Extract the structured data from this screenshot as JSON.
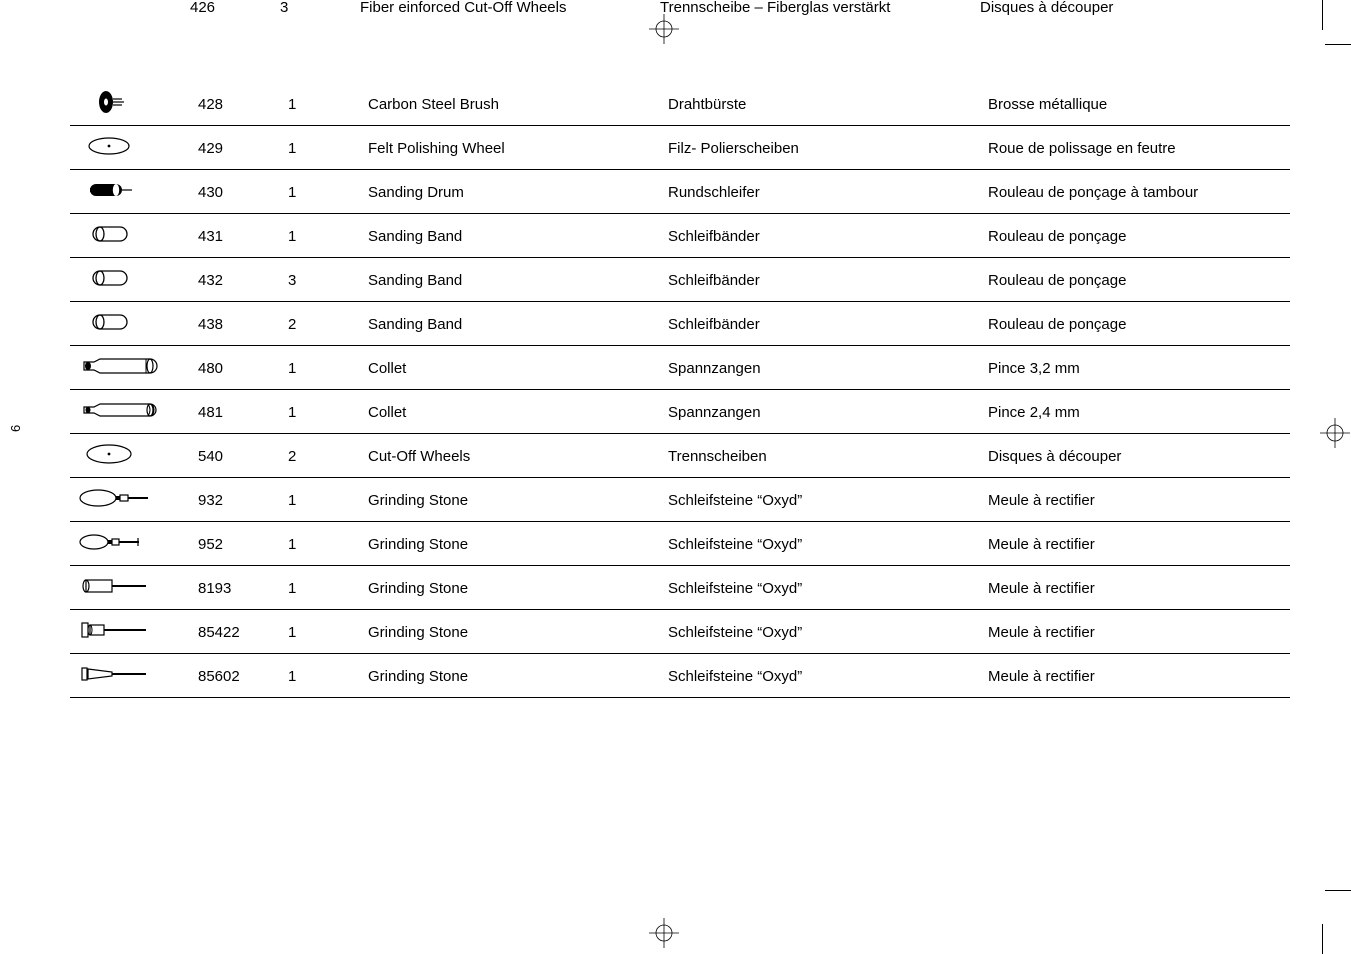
{
  "page_number": "6",
  "partial_row": {
    "num": "426",
    "qty": "3",
    "en": "Fiber  einforced Cut-Off  Wheels",
    "de": "Trennscheibe – Fiberglas verstärkt",
    "fr": "Disques à découper"
  },
  "rows": [
    {
      "icon": "brush",
      "num": "428",
      "qty": "1",
      "en": "Carbon Steel Brush",
      "de": "Drahtbürste",
      "fr": "Brosse métallique"
    },
    {
      "icon": "feltwheel",
      "num": "429",
      "qty": "1",
      "en": "Felt Polishing Wheel",
      "de": "Filz- Polierscheiben",
      "fr": "Roue de polissage en feutre"
    },
    {
      "icon": "drum",
      "num": "430",
      "qty": "1",
      "en": "Sanding Drum",
      "de": "Rundschleifer",
      "fr": "Rouleau de ponçage  à tambour"
    },
    {
      "icon": "band",
      "num": "431",
      "qty": "1",
      "en": "Sanding Band",
      "de": "Schleifbänder",
      "fr": "Rouleau de ponçage"
    },
    {
      "icon": "band",
      "num": "432",
      "qty": "3",
      "en": "Sanding Band",
      "de": "Schleifbänder",
      "fr": "Rouleau de ponçage"
    },
    {
      "icon": "band",
      "num": "438",
      "qty": "2",
      "en": "Sanding Band",
      "de": "Schleifbänder",
      "fr": "Rouleau de ponçage"
    },
    {
      "icon": "collet32",
      "num": "480",
      "qty": "1",
      "en": "Collet",
      "de": "Spannzangen",
      "fr": "Pince 3,2 mm"
    },
    {
      "icon": "collet24",
      "num": "481",
      "qty": "1",
      "en": "Collet",
      "de": "Spannzangen",
      "fr": "Pince 2,4 mm"
    },
    {
      "icon": "cutoff",
      "num": "540",
      "qty": "2",
      "en": "Cut-Off Wheels",
      "de": "Trennscheiben",
      "fr": "Disques à découper"
    },
    {
      "icon": "stoneA",
      "num": "932",
      "qty": "1",
      "en": "Grinding Stone",
      "de": "Schleifsteine “Oxyd”",
      "fr": "Meule à rectifier"
    },
    {
      "icon": "stoneB",
      "num": "952",
      "qty": "1",
      "en": "Grinding Stone",
      "de": "Schleifsteine “Oxyd”",
      "fr": "Meule à rectifier"
    },
    {
      "icon": "stoneC",
      "num": "8193",
      "qty": "1",
      "en": "Grinding Stone",
      "de": "Schleifsteine “Oxyd”",
      "fr": "Meule à rectifier"
    },
    {
      "icon": "stoneD",
      "num": "85422",
      "qty": "1",
      "en": "Grinding Stone",
      "de": "Schleifsteine “Oxyd”",
      "fr": "Meule à rectifier"
    },
    {
      "icon": "stoneE",
      "num": "85602",
      "qty": "1",
      "en": "Grinding Stone",
      "de": "Schleifsteine “Oxyd”",
      "fr": "Meule à rectifier"
    }
  ]
}
